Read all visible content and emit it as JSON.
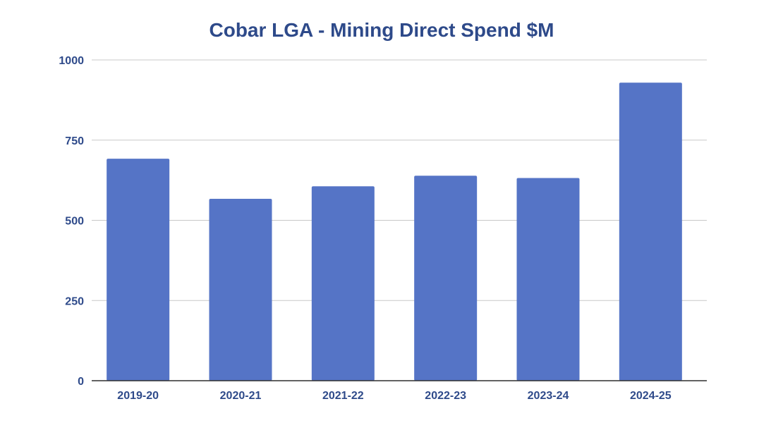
{
  "colors": {
    "bar": "#5574c6",
    "text": "#2e4a8a",
    "grid": "#c8c8c8",
    "axis": "#2e2e2e"
  },
  "chart_data": {
    "type": "bar",
    "title": "Cobar LGA - Mining Direct Spend $M",
    "xlabel": "",
    "ylabel": "",
    "categories": [
      "2019-20",
      "2020-21",
      "2021-22",
      "2022-23",
      "2023-24",
      "2024-25"
    ],
    "values": [
      692,
      567,
      606,
      639,
      632,
      929
    ],
    "ylim": [
      0,
      1000
    ],
    "yticks": [
      0,
      250,
      500,
      750,
      1000
    ],
    "ytick_labels": [
      "0",
      "250",
      "500",
      "750",
      "1000"
    ],
    "grid": true,
    "legend": "none"
  }
}
